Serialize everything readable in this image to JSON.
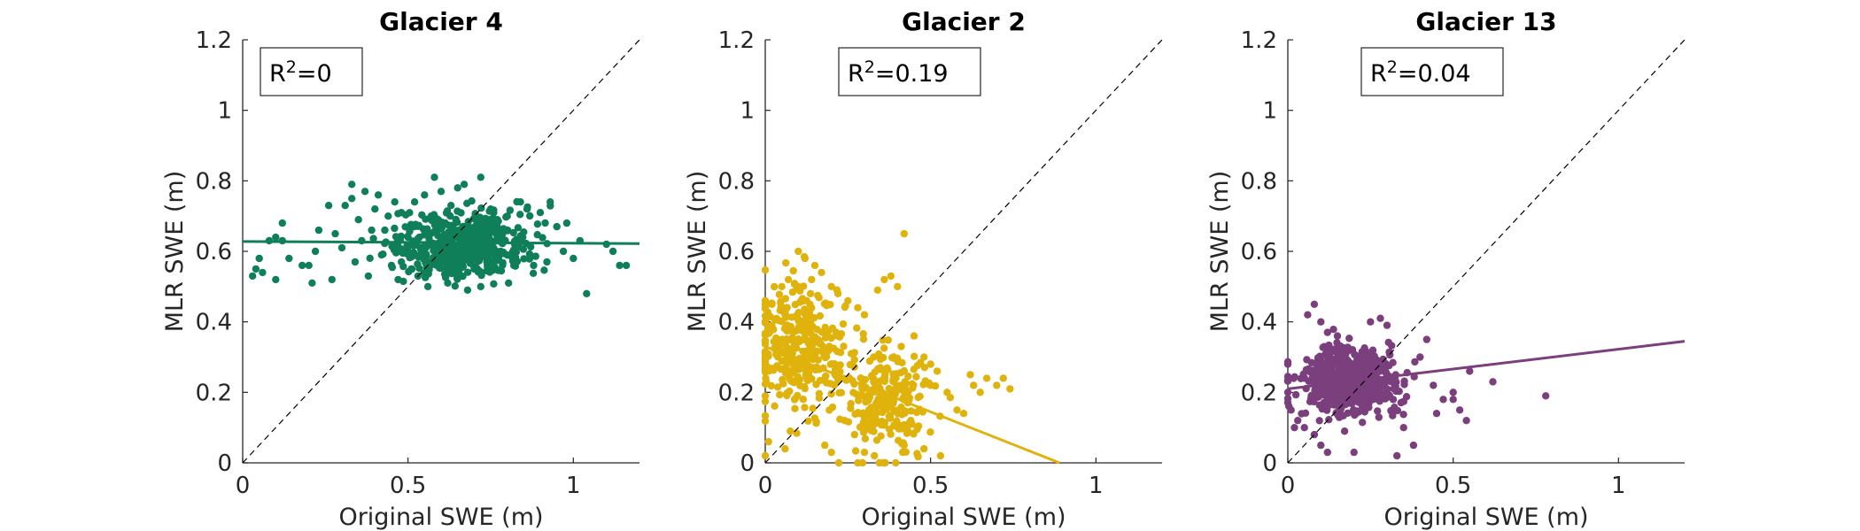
{
  "chart_data": [
    {
      "type": "scatter",
      "title": "Glacier 4",
      "xlabel": "Original SWE (m)",
      "ylabel": "MLR SWE (m)",
      "xlim": [
        0,
        1.2
      ],
      "ylim": [
        0,
        1.2
      ],
      "xticks": [
        "0",
        "0.5",
        "1"
      ],
      "yticks": [
        "0",
        "0.2",
        "0.4",
        "0.6",
        "0.8",
        "1",
        "1.2"
      ],
      "annotation": {
        "base": "R",
        "sup": "2",
        "value": "=0"
      },
      "color": "#0f7f5a",
      "fit_line": {
        "x": [
          0,
          1.2
        ],
        "y": [
          0.628,
          0.622
        ]
      },
      "identity_line": true,
      "cluster": {
        "center": [
          0.66,
          0.62
        ],
        "spread": [
          0.1,
          0.045
        ],
        "count": 500
      },
      "points": [
        [
          0.03,
          0.53
        ],
        [
          0.04,
          0.55
        ],
        [
          0.05,
          0.58
        ],
        [
          0.06,
          0.54
        ],
        [
          0.08,
          0.63
        ],
        [
          0.1,
          0.64
        ],
        [
          0.1,
          0.52
        ],
        [
          0.12,
          0.63
        ],
        [
          0.12,
          0.68
        ],
        [
          0.14,
          0.58
        ],
        [
          0.18,
          0.56
        ],
        [
          0.2,
          0.56
        ],
        [
          0.21,
          0.51
        ],
        [
          0.22,
          0.6
        ],
        [
          0.23,
          0.66
        ],
        [
          0.26,
          0.73
        ],
        [
          0.27,
          0.52
        ],
        [
          0.28,
          0.65
        ],
        [
          0.3,
          0.61
        ],
        [
          0.31,
          0.73
        ],
        [
          0.33,
          0.75
        ],
        [
          0.33,
          0.79
        ],
        [
          0.34,
          0.57
        ],
        [
          0.35,
          0.69
        ],
        [
          0.36,
          0.63
        ],
        [
          0.37,
          0.77
        ],
        [
          0.38,
          0.53
        ],
        [
          0.39,
          0.66
        ],
        [
          0.4,
          0.72
        ],
        [
          0.41,
          0.76
        ],
        [
          0.42,
          0.59
        ],
        [
          0.43,
          0.66
        ],
        [
          0.44,
          0.7
        ],
        [
          0.45,
          0.56
        ],
        [
          0.46,
          0.74
        ],
        [
          0.47,
          0.52
        ],
        [
          0.48,
          0.57
        ],
        [
          0.48,
          0.71
        ],
        [
          0.5,
          0.64
        ],
        [
          0.51,
          0.55
        ],
        [
          0.52,
          0.74
        ],
        [
          0.53,
          0.53
        ],
        [
          0.54,
          0.6
        ],
        [
          0.55,
          0.76
        ],
        [
          0.56,
          0.5
        ],
        [
          0.57,
          0.7
        ],
        [
          0.58,
          0.81
        ],
        [
          0.6,
          0.77
        ],
        [
          0.62,
          0.51
        ],
        [
          0.63,
          0.73
        ],
        [
          0.65,
          0.78
        ],
        [
          0.67,
          0.79
        ],
        [
          0.68,
          0.49
        ],
        [
          0.7,
          0.55
        ],
        [
          0.72,
          0.81
        ],
        [
          0.72,
          0.5
        ],
        [
          0.74,
          0.56
        ],
        [
          0.75,
          0.72
        ],
        [
          0.77,
          0.69
        ],
        [
          0.78,
          0.6
        ],
        [
          0.8,
          0.7
        ],
        [
          0.82,
          0.56
        ],
        [
          0.84,
          0.74
        ],
        [
          0.86,
          0.72
        ],
        [
          0.88,
          0.56
        ],
        [
          0.9,
          0.71
        ],
        [
          0.92,
          0.57
        ],
        [
          0.93,
          0.74
        ],
        [
          0.95,
          0.67
        ],
        [
          0.97,
          0.6
        ],
        [
          0.98,
          0.68
        ],
        [
          1.0,
          0.58
        ],
        [
          1.02,
          0.63
        ],
        [
          1.04,
          0.48
        ],
        [
          1.1,
          0.62
        ],
        [
          1.12,
          0.6
        ],
        [
          1.14,
          0.56
        ],
        [
          1.16,
          0.56
        ]
      ]
    },
    {
      "type": "scatter",
      "title": "Glacier 2",
      "xlabel": "Original SWE (m)",
      "ylabel": "MLR SWE (m)",
      "xlim": [
        0,
        1.2
      ],
      "ylim": [
        0,
        1.2
      ],
      "xticks": [
        "0",
        "0.5",
        "1"
      ],
      "yticks": [
        "0",
        "0.2",
        "0.4",
        "0.6",
        "0.8",
        "1",
        "1.2"
      ],
      "annotation": {
        "base": "R",
        "sup": "2",
        "value": "=0.19"
      },
      "color": "#e0b30c",
      "fit_line": {
        "x": [
          0,
          0.89
        ],
        "y": [
          0.33,
          0.0
        ]
      },
      "identity_line": true,
      "cluster": [
        {
          "center": [
            0.1,
            0.33
          ],
          "spread": [
            0.07,
            0.09
          ],
          "count": 350
        },
        {
          "center": [
            0.37,
            0.18
          ],
          "spread": [
            0.06,
            0.07
          ],
          "count": 250
        }
      ],
      "points": [
        [
          0.1,
          0.6
        ],
        [
          0.12,
          0.58
        ],
        [
          0.15,
          0.56
        ],
        [
          0.17,
          0.54
        ],
        [
          0.14,
          0.52
        ],
        [
          0.2,
          0.5
        ],
        [
          0.22,
          0.48
        ],
        [
          0.25,
          0.46
        ],
        [
          0.28,
          0.44
        ],
        [
          0.3,
          0.42
        ],
        [
          0.02,
          0.45
        ],
        [
          0.05,
          0.5
        ],
        [
          0.07,
          0.52
        ],
        [
          0.36,
          0.52
        ],
        [
          0.38,
          0.53
        ],
        [
          0.4,
          0.5
        ],
        [
          0.34,
          0.49
        ],
        [
          0.42,
          0.65
        ],
        [
          0.45,
          0.36
        ],
        [
          0.48,
          0.3
        ],
        [
          0.5,
          0.28
        ],
        [
          0.52,
          0.26
        ],
        [
          0.5,
          0.22
        ],
        [
          0.55,
          0.2
        ],
        [
          0.58,
          0.15
        ],
        [
          0.6,
          0.14
        ],
        [
          0.62,
          0.25
        ],
        [
          0.63,
          0.22
        ],
        [
          0.65,
          0.2
        ],
        [
          0.67,
          0.24
        ],
        [
          0.7,
          0.22
        ],
        [
          0.72,
          0.24
        ],
        [
          0.74,
          0.21
        ],
        [
          0.53,
          0.02
        ],
        [
          0.48,
          0.04
        ],
        [
          0.42,
          0.05
        ],
        [
          0.3,
          0.03
        ],
        [
          0.28,
          0.0
        ],
        [
          0.33,
          0.02
        ],
        [
          0.36,
          0.0
        ],
        [
          0.06,
          0.04
        ],
        [
          0.18,
          0.05
        ],
        [
          0.2,
          0.03
        ],
        [
          0.27,
          0.08
        ],
        [
          0.24,
          0.12
        ],
        [
          0.01,
          0.06
        ],
        [
          0.0,
          0.02
        ],
        [
          0.32,
          0.1
        ],
        [
          0.44,
          0.12
        ]
      ]
    },
    {
      "type": "scatter",
      "title": "Glacier 13",
      "xlabel": "Original SWE (m)",
      "ylabel": "MLR SWE (m)",
      "xlim": [
        0,
        1.2
      ],
      "ylim": [
        0,
        1.2
      ],
      "xticks": [
        "0",
        "0.5",
        "1"
      ],
      "yticks": [
        "0",
        "0.2",
        "0.4",
        "0.6",
        "0.8",
        "1",
        "1.2"
      ],
      "annotation": {
        "base": "R",
        "sup": "2",
        "value": "=0.04"
      },
      "color": "#7b3f7d",
      "fit_line": {
        "x": [
          0,
          1.2
        ],
        "y": [
          0.21,
          0.345
        ]
      },
      "identity_line": true,
      "cluster": {
        "center": [
          0.19,
          0.23
        ],
        "spread": [
          0.07,
          0.045
        ],
        "count": 700
      },
      "points": [
        [
          0.06,
          0.42
        ],
        [
          0.08,
          0.45
        ],
        [
          0.1,
          0.4
        ],
        [
          0.12,
          0.37
        ],
        [
          0.15,
          0.36
        ],
        [
          0.02,
          0.1
        ],
        [
          0.03,
          0.12
        ],
        [
          0.05,
          0.1
        ],
        [
          0.08,
          0.08
        ],
        [
          0.1,
          0.05
        ],
        [
          0.12,
          0.03
        ],
        [
          0.2,
          0.03
        ],
        [
          0.33,
          0.02
        ],
        [
          0.35,
          0.1
        ],
        [
          0.38,
          0.05
        ],
        [
          0.4,
          0.3
        ],
        [
          0.42,
          0.35
        ],
        [
          0.44,
          0.22
        ],
        [
          0.45,
          0.14
        ],
        [
          0.47,
          0.18
        ],
        [
          0.5,
          0.18
        ],
        [
          0.5,
          0.2
        ],
        [
          0.52,
          0.15
        ],
        [
          0.54,
          0.12
        ],
        [
          0.55,
          0.26
        ],
        [
          0.62,
          0.23
        ],
        [
          0.78,
          0.19
        ],
        [
          0.0,
          0.2
        ],
        [
          0.0,
          0.28
        ],
        [
          0.01,
          0.15
        ],
        [
          0.3,
          0.39
        ],
        [
          0.28,
          0.41
        ],
        [
          0.25,
          0.4
        ]
      ]
    }
  ]
}
